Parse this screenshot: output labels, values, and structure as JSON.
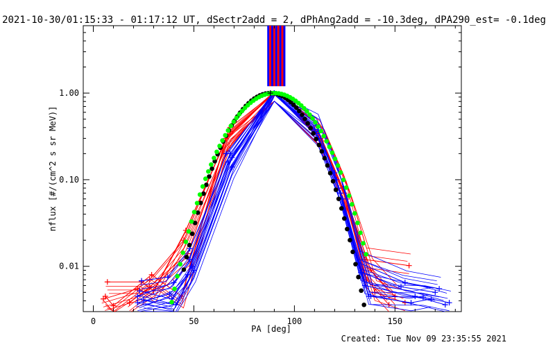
{
  "header": {
    "title": "2021-10-30/01:15:33 - 01:17:12 UT, dSectr2add = 2, dPhAng2add = -10.3deg, dPA290_est= -0.1deg"
  },
  "footer": {
    "created": "Created: Tue Nov 09 23:35:55 2021"
  },
  "colors": {
    "red": "#ff0000",
    "blue": "#0000ff",
    "green": "#00ff00",
    "black": "#000000"
  },
  "chart_data": {
    "type": "line",
    "title": "2021-10-30/01:15:33 - 01:17:12 UT, dSectr2add = 2, dPhAng2add = -10.3deg, dPA290_est= -0.1deg",
    "xlabel": "PA [deg]",
    "ylabel": "nflux [#/(cm^2 s sr MeV)]",
    "xlim": [
      -5,
      183
    ],
    "ylim": [
      0.003,
      6.0
    ],
    "yscale": "log",
    "x_ticks": [
      0,
      50,
      100,
      150
    ],
    "x_tick_labels": [
      "0",
      "50",
      "100",
      "150"
    ],
    "y_ticks": [
      0.01,
      0.1,
      1.0
    ],
    "y_tick_labels": [
      "0.01",
      "0.10",
      "1.00"
    ],
    "grid": false,
    "series": [
      {
        "color": "red",
        "style": "lines+plus",
        "points": [
          [
            5,
            0.0042
          ],
          [
            22,
            0.0055
          ],
          [
            28,
            0.007
          ],
          [
            45,
            0.02
          ],
          [
            68,
            0.4
          ],
          [
            90,
            1.0
          ],
          [
            112,
            0.35
          ],
          [
            125,
            0.07
          ],
          [
            135,
            0.012
          ],
          [
            157,
            0.0102
          ]
        ]
      },
      {
        "color": "red",
        "style": "lines+plus",
        "points": [
          [
            7,
            0.0066
          ],
          [
            24,
            0.0066
          ],
          [
            30,
            0.0052
          ],
          [
            46,
            0.026
          ],
          [
            67,
            0.33
          ],
          [
            90,
            1.0
          ],
          [
            113,
            0.3
          ],
          [
            126,
            0.06
          ],
          [
            138,
            0.009
          ],
          [
            150,
            0.0045
          ]
        ]
      },
      {
        "color": "red",
        "style": "lines+plus",
        "points": [
          [
            6,
            0.0045
          ],
          [
            10,
            0.0035
          ],
          [
            29,
            0.008
          ],
          [
            44,
            0.0045
          ],
          [
            66,
            0.3
          ],
          [
            90,
            1.0
          ],
          [
            114,
            0.28
          ],
          [
            124,
            0.08
          ],
          [
            136,
            0.007
          ],
          [
            147,
            0.0036
          ]
        ]
      },
      {
        "color": "red",
        "style": "lines+plus",
        "points": [
          [
            18,
            0.0038
          ],
          [
            28,
            0.0058
          ],
          [
            47,
            0.014
          ],
          [
            68,
            0.36
          ],
          [
            90,
            1.0
          ],
          [
            112,
            0.32
          ],
          [
            127,
            0.05
          ],
          [
            140,
            0.005
          ],
          [
            155,
            0.0038
          ]
        ]
      },
      {
        "color": "blue",
        "style": "lines+plus",
        "points": [
          [
            22,
            0.0045
          ],
          [
            40,
            0.0065
          ],
          [
            48,
            0.012
          ],
          [
            66,
            0.2
          ],
          [
            90,
            1.0
          ],
          [
            111,
            0.42
          ],
          [
            121,
            0.1
          ],
          [
            133,
            0.0085
          ],
          [
            153,
            0.0058
          ],
          [
            170,
            0.005
          ]
        ]
      },
      {
        "color": "blue",
        "style": "lines+plus",
        "points": [
          [
            22,
            0.0038
          ],
          [
            38,
            0.0048
          ],
          [
            47,
            0.008
          ],
          [
            67,
            0.16
          ],
          [
            90,
            1.0
          ],
          [
            112,
            0.36
          ],
          [
            122,
            0.08
          ],
          [
            135,
            0.006
          ],
          [
            160,
            0.0045
          ],
          [
            175,
            0.0036
          ]
        ]
      },
      {
        "color": "blue",
        "style": "lines+plus",
        "points": [
          [
            24,
            0.0068
          ],
          [
            37,
            0.0075
          ],
          [
            48,
            0.016
          ],
          [
            68,
            0.2
          ],
          [
            90,
            1.0
          ],
          [
            110,
            0.38
          ],
          [
            120,
            0.12
          ],
          [
            132,
            0.011
          ],
          [
            155,
            0.0065
          ],
          [
            172,
            0.0055
          ]
        ]
      },
      {
        "color": "blue",
        "style": "lines+plus",
        "points": [
          [
            23,
            0.0052
          ],
          [
            39,
            0.0042
          ],
          [
            49,
            0.01
          ],
          [
            69,
            0.18
          ],
          [
            90,
            1.0
          ],
          [
            111,
            0.34
          ],
          [
            123,
            0.07
          ],
          [
            137,
            0.0045
          ],
          [
            164,
            0.0044
          ],
          [
            177,
            0.0038
          ]
        ]
      },
      {
        "color": "blue",
        "style": "lines+plus",
        "points": [
          [
            25,
            0.0041
          ],
          [
            41,
            0.0036
          ],
          [
            50,
            0.009
          ],
          [
            69,
            0.14
          ],
          [
            90,
            1.0
          ],
          [
            112,
            0.3
          ],
          [
            124,
            0.06
          ],
          [
            138,
            0.0045
          ],
          [
            158,
            0.0038
          ],
          [
            168,
            0.0042
          ]
        ]
      },
      {
        "color": "green",
        "style": "dots",
        "model": "sin^n",
        "peak_x": 90,
        "peak_y": 1.0,
        "exponent": 12,
        "x_range": [
          39,
          137
        ]
      },
      {
        "color": "black",
        "style": "dots",
        "model": "sin^n",
        "peak_x": 88,
        "peak_y": 1.0,
        "exponent": 15,
        "x_range": [
          45,
          140
        ]
      }
    ],
    "vertical_bars": {
      "x": [
        87,
        88,
        89,
        90,
        91,
        92,
        93,
        94,
        95
      ],
      "from_y": 1.2,
      "colors": [
        "blue",
        "red",
        "blue",
        "red",
        "blue",
        "red",
        "blue",
        "red",
        "blue"
      ]
    }
  }
}
